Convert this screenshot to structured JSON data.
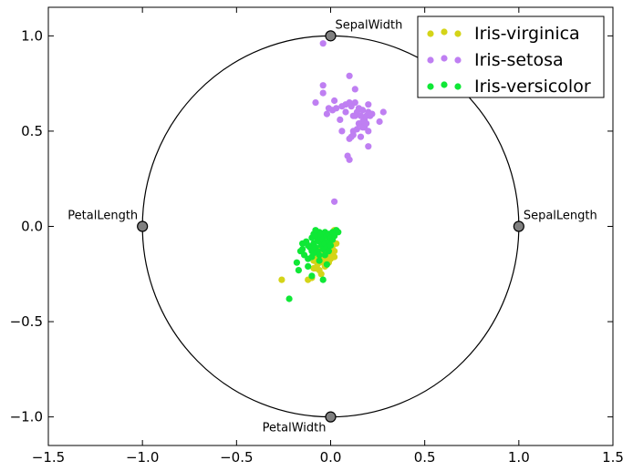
{
  "chart_data": {
    "type": "scatter",
    "title": "",
    "xlabel": "",
    "ylabel": "",
    "xlim": [
      -1.5,
      1.5
    ],
    "ylim": [
      -1.15,
      1.15
    ],
    "xticks": [
      -1.5,
      -1.0,
      -0.5,
      0.0,
      0.5,
      1.0,
      1.5
    ],
    "xtick_labels": [
      "−1.5",
      "−1.0",
      "−0.5",
      "0.0",
      "0.5",
      "1.0",
      "1.5"
    ],
    "yticks": [
      -1.0,
      -0.5,
      0.0,
      0.5,
      1.0
    ],
    "ytick_labels": [
      "−1.0",
      "−0.5",
      "0.0",
      "0.5",
      "1.0"
    ],
    "grid": false,
    "legend_position": "top-right",
    "unit_circle": {
      "center": [
        0,
        0
      ],
      "radius": 1
    },
    "anchors": [
      {
        "label": "SepalWidth",
        "x": 0.0,
        "y": 1.0,
        "label_side": "above-right"
      },
      {
        "label": "SepalLength",
        "x": 1.0,
        "y": 0.0,
        "label_side": "above-right"
      },
      {
        "label": "PetalLength",
        "x": -1.0,
        "y": 0.0,
        "label_side": "above-left"
      },
      {
        "label": "PetalWidth",
        "x": 0.0,
        "y": -1.0,
        "label_side": "below-left"
      }
    ],
    "series": [
      {
        "name": "Iris-virginica",
        "color": "#d4d418",
        "points": [
          [
            -0.26,
            -0.28
          ],
          [
            -0.12,
            -0.28
          ],
          [
            -0.1,
            -0.27
          ],
          [
            -0.08,
            -0.22
          ],
          [
            -0.06,
            -0.19
          ],
          [
            -0.05,
            -0.25
          ],
          [
            -0.04,
            -0.16
          ],
          [
            -0.03,
            -0.13
          ],
          [
            -0.02,
            -0.18
          ],
          [
            -0.01,
            -0.1
          ],
          [
            0.0,
            -0.14
          ],
          [
            0.01,
            -0.12
          ],
          [
            0.02,
            -0.16
          ],
          [
            0.02,
            -0.02
          ],
          [
            0.01,
            -0.06
          ],
          [
            0.0,
            -0.09
          ],
          [
            -0.03,
            -0.21
          ],
          [
            -0.02,
            -0.15
          ],
          [
            -0.07,
            -0.14
          ],
          [
            -0.09,
            -0.18
          ],
          [
            0.03,
            -0.09
          ],
          [
            -0.04,
            -0.11
          ],
          [
            -0.01,
            -0.19
          ],
          [
            -0.05,
            -0.12
          ],
          [
            0.0,
            -0.17
          ],
          [
            -0.06,
            -0.23
          ],
          [
            0.01,
            -0.1
          ],
          [
            -0.08,
            -0.16
          ],
          [
            0.02,
            -0.13
          ],
          [
            -0.02,
            -0.08
          ],
          [
            -0.03,
            -0.14
          ],
          [
            -0.04,
            -0.19
          ],
          [
            0.01,
            -0.16
          ],
          [
            -0.01,
            -0.12
          ],
          [
            -0.05,
            -0.16
          ],
          [
            -0.09,
            -0.22
          ],
          [
            0.0,
            -0.11
          ],
          [
            -0.07,
            -0.2
          ],
          [
            0.02,
            -0.05
          ],
          [
            -0.02,
            -0.2
          ]
        ]
      },
      {
        "name": "Iris-setosa",
        "color": "#bf7ff2",
        "points": [
          [
            -0.04,
            0.96
          ],
          [
            -0.04,
            0.74
          ],
          [
            -0.04,
            0.7
          ],
          [
            -0.08,
            0.65
          ],
          [
            -0.02,
            0.59
          ],
          [
            0.01,
            0.61
          ],
          [
            0.03,
            0.62
          ],
          [
            0.02,
            0.66
          ],
          [
            -0.01,
            0.62
          ],
          [
            0.05,
            0.56
          ],
          [
            0.06,
            0.5
          ],
          [
            0.1,
            0.79
          ],
          [
            0.08,
            0.64
          ],
          [
            0.1,
            0.65
          ],
          [
            0.13,
            0.72
          ],
          [
            0.13,
            0.65
          ],
          [
            0.11,
            0.63
          ],
          [
            0.12,
            0.58
          ],
          [
            0.14,
            0.6
          ],
          [
            0.16,
            0.58
          ],
          [
            0.17,
            0.61
          ],
          [
            0.18,
            0.56
          ],
          [
            0.19,
            0.58
          ],
          [
            0.2,
            0.64
          ],
          [
            0.2,
            0.6
          ],
          [
            0.21,
            0.58
          ],
          [
            0.22,
            0.59
          ],
          [
            0.17,
            0.55
          ],
          [
            0.15,
            0.54
          ],
          [
            0.18,
            0.52
          ],
          [
            0.14,
            0.51
          ],
          [
            0.12,
            0.5
          ],
          [
            0.12,
            0.48
          ],
          [
            0.1,
            0.46
          ],
          [
            0.11,
            0.47
          ],
          [
            0.09,
            0.37
          ],
          [
            0.1,
            0.35
          ],
          [
            0.2,
            0.5
          ],
          [
            0.2,
            0.42
          ],
          [
            0.26,
            0.55
          ],
          [
            0.28,
            0.6
          ],
          [
            0.17,
            0.52
          ],
          [
            0.19,
            0.54
          ],
          [
            0.15,
            0.62
          ],
          [
            0.13,
            0.58
          ],
          [
            0.16,
            0.47
          ],
          [
            0.08,
            0.6
          ],
          [
            0.06,
            0.63
          ],
          [
            0.02,
            0.13
          ]
        ]
      },
      {
        "name": "Iris-versicolor",
        "color": "#0fe836",
        "points": [
          [
            -0.22,
            -0.38
          ],
          [
            -0.18,
            -0.19
          ],
          [
            -0.17,
            -0.23
          ],
          [
            -0.15,
            -0.09
          ],
          [
            -0.15,
            -0.12
          ],
          [
            -0.14,
            -0.15
          ],
          [
            -0.13,
            -0.08
          ],
          [
            -0.12,
            -0.17
          ],
          [
            -0.12,
            -0.21
          ],
          [
            -0.11,
            -0.11
          ],
          [
            -0.1,
            -0.06
          ],
          [
            -0.1,
            -0.13
          ],
          [
            -0.1,
            -0.16
          ],
          [
            -0.09,
            -0.09
          ],
          [
            -0.09,
            -0.04
          ],
          [
            -0.08,
            -0.05
          ],
          [
            -0.08,
            -0.11
          ],
          [
            -0.07,
            -0.07
          ],
          [
            -0.07,
            -0.13
          ],
          [
            -0.06,
            -0.03
          ],
          [
            -0.06,
            -0.08
          ],
          [
            -0.06,
            -0.15
          ],
          [
            -0.05,
            -0.06
          ],
          [
            -0.05,
            -0.1
          ],
          [
            -0.05,
            -0.04
          ],
          [
            -0.04,
            -0.12
          ],
          [
            -0.04,
            -0.07
          ],
          [
            -0.03,
            -0.03
          ],
          [
            -0.03,
            -0.09
          ],
          [
            -0.03,
            -0.15
          ],
          [
            -0.02,
            -0.05
          ],
          [
            -0.02,
            -0.11
          ],
          [
            -0.01,
            -0.04
          ],
          [
            -0.01,
            -0.08
          ],
          [
            0.0,
            -0.06
          ],
          [
            0.0,
            -0.1
          ],
          [
            0.01,
            -0.03
          ],
          [
            0.01,
            -0.07
          ],
          [
            0.02,
            -0.05
          ],
          [
            0.03,
            -0.02
          ],
          [
            0.04,
            -0.03
          ],
          [
            -0.04,
            -0.28
          ],
          [
            -0.1,
            -0.26
          ],
          [
            -0.02,
            -0.2
          ],
          [
            -0.08,
            -0.02
          ],
          [
            -0.12,
            -0.1
          ],
          [
            -0.16,
            -0.13
          ],
          [
            -0.06,
            -0.18
          ],
          [
            -0.01,
            -0.13
          ],
          [
            -0.09,
            -0.14
          ]
        ]
      }
    ]
  }
}
